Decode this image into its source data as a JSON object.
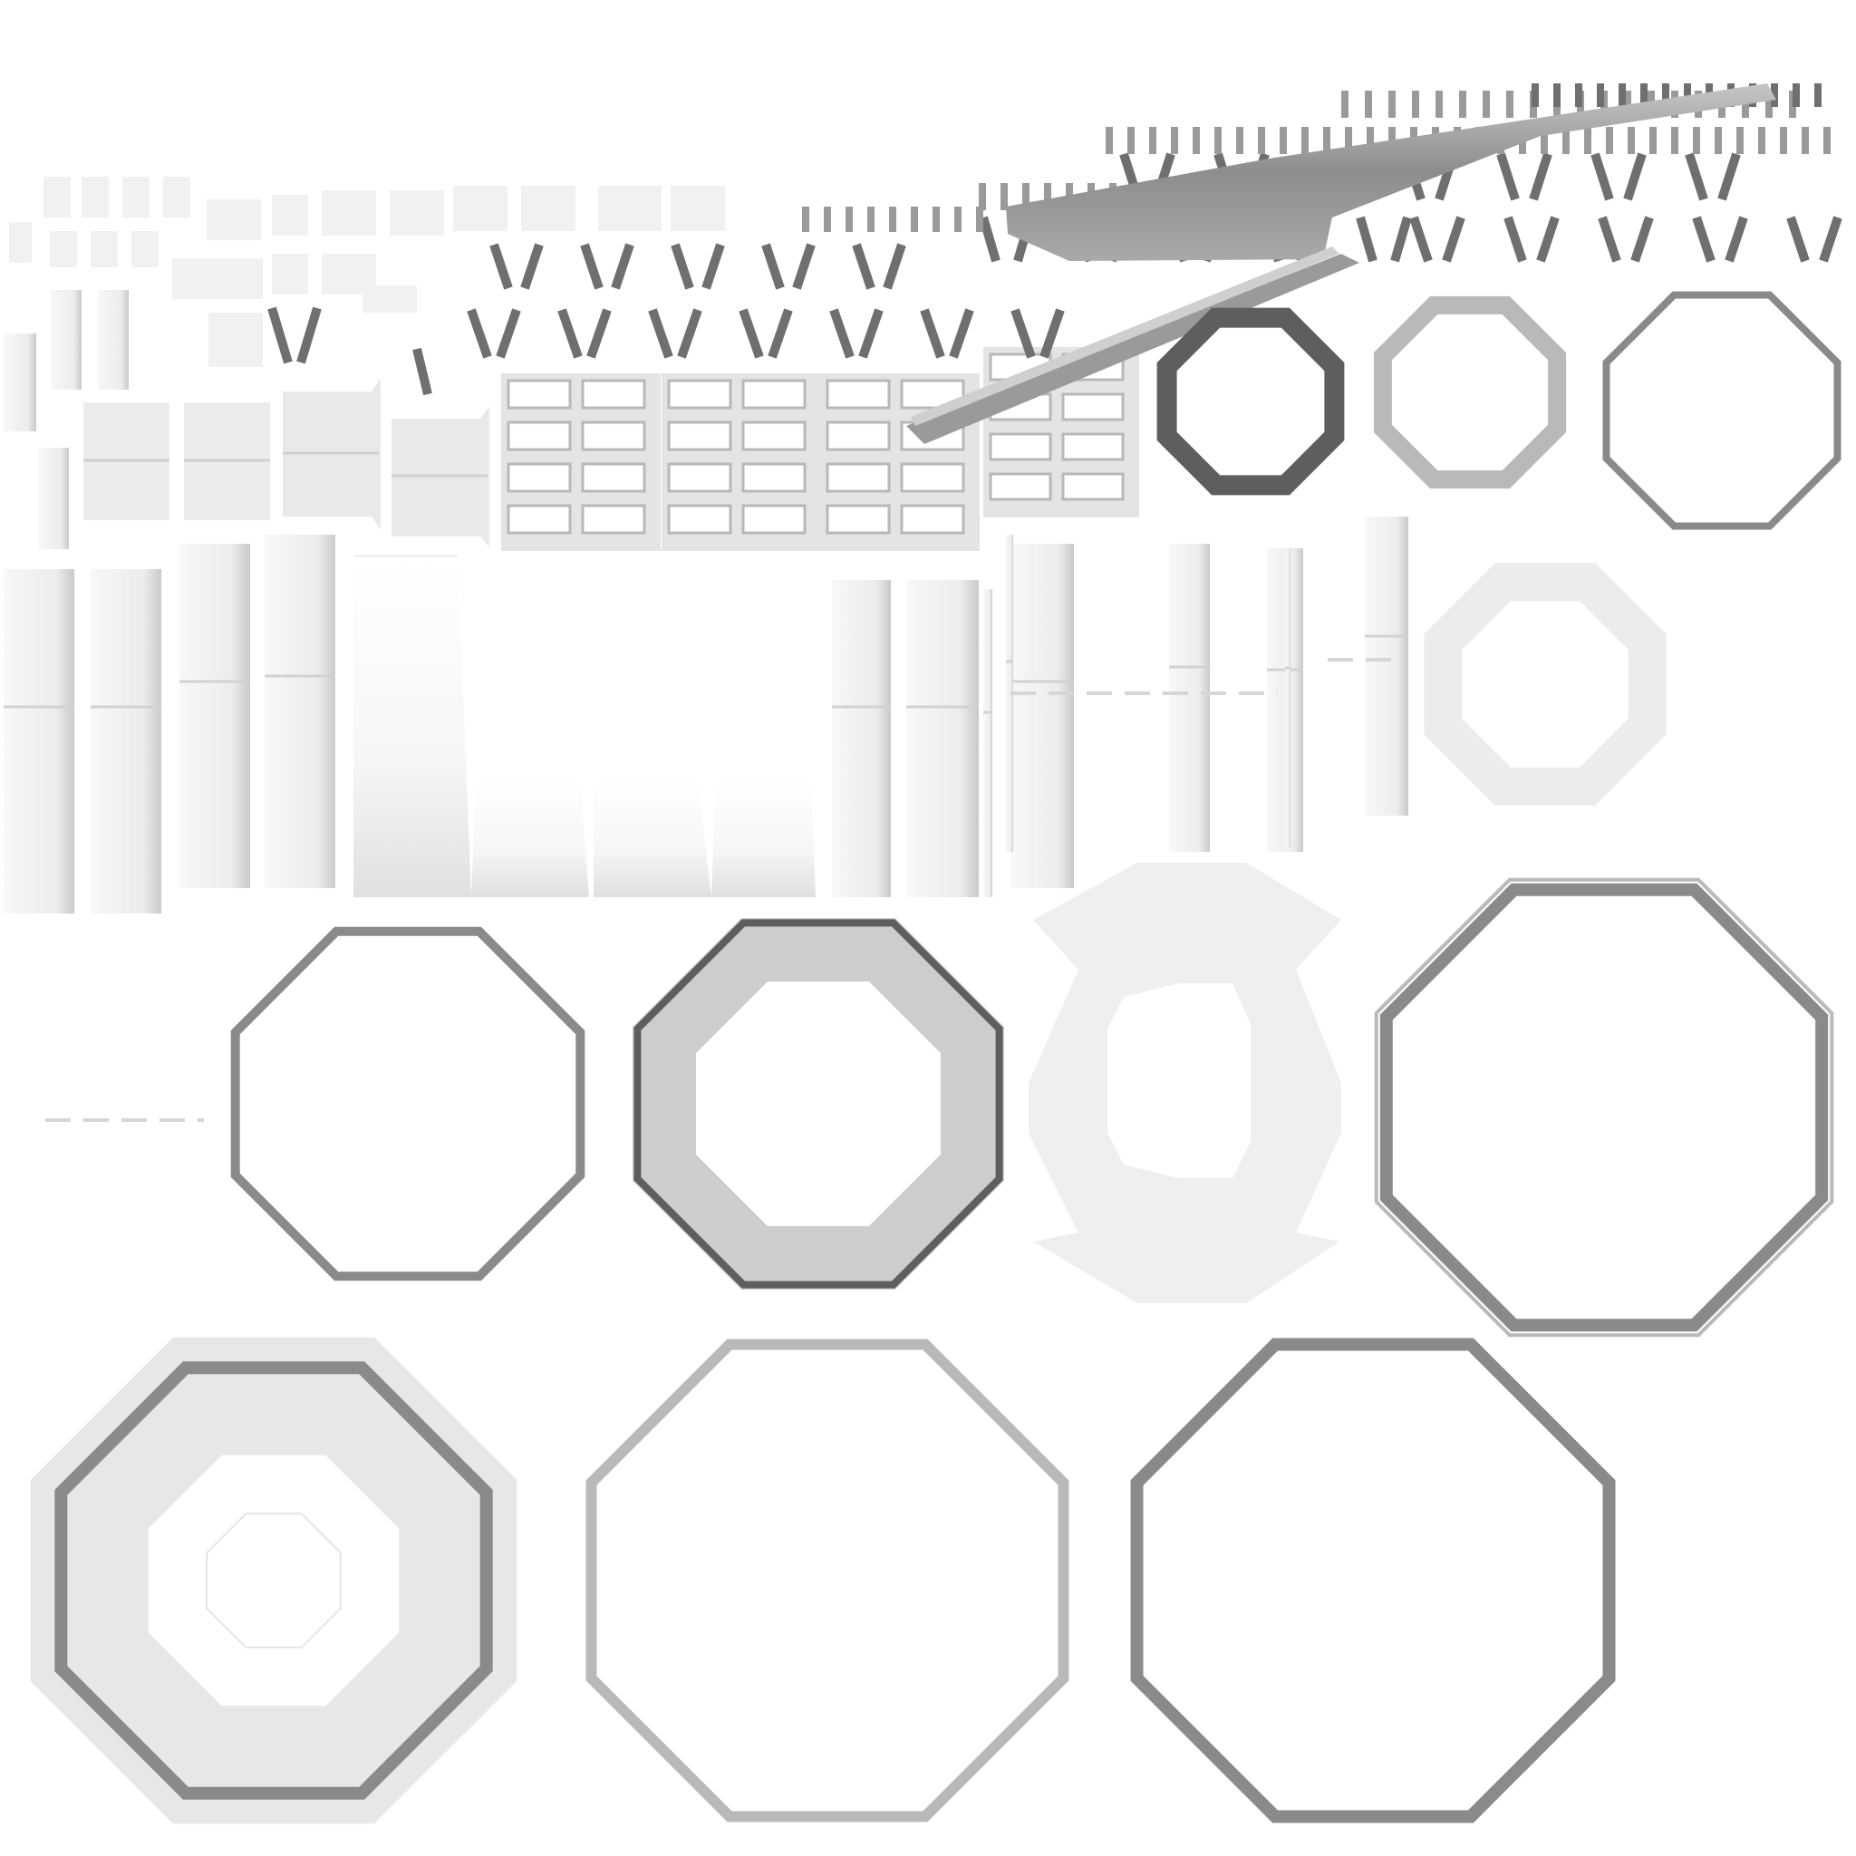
{
  "atlas": {
    "kind": "texture atlas / UV bake",
    "background": "#ffffff",
    "colors": {
      "ring_dark": "#5e5e5e",
      "ring_mid": "#8a8a8a",
      "ring_light": "#b9b9b9",
      "fill_light": "#ececec",
      "fill_faint": "#f4f4f4",
      "shade": "#dcdcdc",
      "tick": "#6f6f6f",
      "tick_light": "#9a9a9a"
    },
    "octagon_ring_count": 14,
    "tick_row_count": 8,
    "grid_panel_count": 7,
    "strip_count": 18
  }
}
